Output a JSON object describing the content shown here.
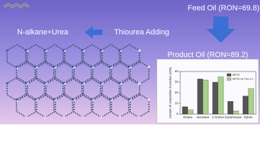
{
  "labels": {
    "feed_oil": "Feed Oil (RON=69.8)",
    "product_oil": "Product Oil (RON=89.2)",
    "left_product": "N-alkane+Urea",
    "process": "Thiourea Adding"
  },
  "chart_data": {
    "type": "bar",
    "y_label": "Content of composition in product (wt%)",
    "categories": [
      "Octane",
      "Isooctane",
      "1-Octene",
      "Cyclohexane",
      "Xylene"
    ],
    "series": [
      {
        "name": "MFO2",
        "color": "#555555",
        "values": [
          7,
          33,
          30,
          12,
          17
        ]
      },
      {
        "name": "MFO2 by ThU-1:1",
        "color": "#a9d18e",
        "values": [
          4,
          32,
          35,
          3,
          24
        ]
      }
    ],
    "ylim": [
      0,
      40
    ],
    "yticks": [
      0,
      10,
      20,
      30,
      40
    ],
    "legend": "upper right"
  }
}
